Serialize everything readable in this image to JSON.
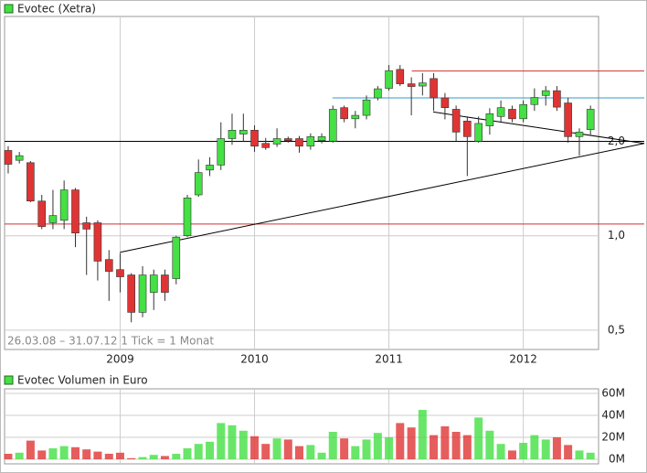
{
  "chart_data": [
    {
      "type": "candlestick",
      "title": "Evotec (Xetra)",
      "caption": "26.03.08 – 31.07.12   1 Tick = 1 Monat",
      "log_scale": true,
      "grid": true,
      "up_color": "#44e044",
      "down_color": "#e03434",
      "x": [
        2008.167,
        2008.25,
        2008.333,
        2008.417,
        2008.5,
        2008.583,
        2008.667,
        2008.75,
        2008.833,
        2008.917,
        2009,
        2009.083,
        2009.167,
        2009.25,
        2009.333,
        2009.417,
        2009.5,
        2009.583,
        2009.667,
        2009.75,
        2009.833,
        2009.917,
        2010,
        2010.083,
        2010.167,
        2010.25,
        2010.333,
        2010.417,
        2010.5,
        2010.583,
        2010.667,
        2010.75,
        2010.833,
        2010.917,
        2011,
        2011.083,
        2011.167,
        2011.25,
        2011.333,
        2011.417,
        2011.5,
        2011.583,
        2011.667,
        2011.75,
        2011.833,
        2011.917,
        2012,
        2012.083,
        2012.167,
        2012.25,
        2012.333,
        2012.417,
        2012.5
      ],
      "open": [
        1.87,
        1.74,
        1.71,
        1.29,
        1.1,
        1.12,
        1.4,
        1.1,
        1.1,
        0.84,
        0.78,
        0.75,
        0.57,
        0.66,
        0.75,
        0.73,
        1.0,
        1.35,
        1.62,
        1.68,
        2.04,
        2.11,
        2.17,
        1.97,
        1.96,
        2.04,
        2.04,
        1.93,
        2.01,
        2.0,
        2.56,
        2.36,
        2.42,
        2.75,
        2.95,
        3.39,
        3.05,
        3.0,
        3.17,
        2.75,
        2.53,
        2.32,
        2.0,
        2.24,
        2.4,
        2.53,
        2.36,
        2.62,
        2.8,
        2.9,
        2.65,
        2.07,
        2.18
      ],
      "high": [
        1.93,
        1.85,
        1.73,
        1.35,
        1.4,
        1.5,
        1.42,
        1.15,
        1.12,
        0.9,
        0.88,
        0.76,
        0.8,
        0.78,
        0.78,
        1.0,
        1.35,
        1.75,
        1.78,
        2.3,
        2.45,
        2.45,
        2.25,
        2.05,
        2.2,
        2.07,
        2.08,
        2.12,
        2.12,
        2.6,
        2.6,
        2.5,
        2.8,
        3.0,
        3.5,
        3.5,
        3.2,
        3.3,
        3.3,
        2.85,
        2.6,
        2.4,
        2.4,
        2.55,
        2.7,
        2.6,
        2.7,
        2.95,
        3.0,
        3.0,
        2.75,
        2.2,
        2.6
      ],
      "low": [
        1.58,
        1.7,
        1.28,
        1.05,
        1.05,
        1.05,
        0.92,
        0.75,
        0.72,
        0.62,
        0.66,
        0.53,
        0.55,
        0.58,
        0.62,
        0.7,
        0.99,
        1.33,
        1.55,
        1.62,
        1.95,
        2.0,
        1.85,
        1.88,
        1.92,
        1.98,
        1.84,
        1.88,
        1.97,
        1.98,
        2.3,
        2.2,
        2.35,
        2.7,
        2.9,
        3.0,
        2.42,
        2.8,
        2.5,
        2.35,
        2.0,
        1.55,
        1.98,
        2.1,
        2.3,
        2.3,
        2.3,
        2.5,
        2.6,
        2.5,
        1.98,
        1.8,
        2.1
      ],
      "close": [
        1.69,
        1.8,
        1.29,
        1.07,
        1.16,
        1.4,
        1.02,
        1.05,
        0.83,
        0.77,
        0.74,
        0.57,
        0.75,
        0.75,
        0.66,
        0.99,
        1.32,
        1.59,
        1.68,
        2.04,
        2.17,
        2.17,
        1.93,
        1.91,
        2.04,
        2.01,
        1.93,
        2.07,
        2.07,
        2.53,
        2.36,
        2.42,
        2.71,
        2.94,
        3.36,
        3.05,
        2.99,
        3.07,
        2.75,
        2.56,
        2.14,
        2.07,
        2.28,
        2.45,
        2.56,
        2.36,
        2.62,
        2.76,
        2.9,
        2.57,
        2.07,
        2.14,
        2.53
      ],
      "xlim": [
        2008.14,
        2012.56
      ],
      "xticks": [
        2009,
        2010,
        2011,
        2012
      ],
      "ylim": [
        0.434,
        5.0
      ],
      "yticks": [
        {
          "value": 0.5,
          "label": "0,5"
        },
        {
          "value": 1,
          "label": "1,0"
        },
        {
          "value": 2,
          "label": "2,0"
        }
      ],
      "hlines": [
        {
          "value": 2.0,
          "color": "#000000",
          "from": 2008.14
        },
        {
          "value": 1.09,
          "color": "#d03030",
          "from": 2008.14
        },
        {
          "value": 3.35,
          "color": "#d03030",
          "from": 2011.17
        },
        {
          "value": 2.75,
          "color": "#3399cc",
          "from": 2010.58
        }
      ],
      "trendlines": [
        {
          "x": [
            2009.0,
            2012.9
          ],
          "y": [
            0.886,
            1.97
          ],
          "color": "#000000"
        },
        {
          "x": [
            2011.33,
            2012.9
          ],
          "y": [
            2.48,
            1.97
          ],
          "color": "#000000"
        }
      ]
    },
    {
      "type": "bar",
      "title": "Evotec Volumen in Euro",
      "x": [
        2008.167,
        2008.25,
        2008.333,
        2008.417,
        2008.5,
        2008.583,
        2008.667,
        2008.75,
        2008.833,
        2008.917,
        2009,
        2009.083,
        2009.167,
        2009.25,
        2009.333,
        2009.417,
        2009.5,
        2009.583,
        2009.667,
        2009.75,
        2009.833,
        2009.917,
        2010,
        2010.083,
        2010.167,
        2010.25,
        2010.333,
        2010.417,
        2010.5,
        2010.583,
        2010.667,
        2010.75,
        2010.833,
        2010.917,
        2011,
        2011.083,
        2011.167,
        2011.25,
        2011.333,
        2011.417,
        2011.5,
        2011.583,
        2011.667,
        2011.75,
        2011.833,
        2011.917,
        2012,
        2012.083,
        2012.167,
        2012.25,
        2012.333,
        2012.417,
        2012.5
      ],
      "values": [
        5000000,
        6000000,
        17000000,
        8000000,
        10000000,
        12000000,
        11000000,
        9000000,
        7000000,
        5000000,
        6000000,
        1000000,
        2000000,
        4000000,
        3000000,
        5000000,
        10000000,
        14000000,
        16000000,
        33000000,
        31000000,
        26000000,
        21000000,
        14000000,
        19000000,
        18000000,
        12000000,
        13000000,
        6000000,
        25000000,
        19000000,
        12000000,
        18000000,
        24000000,
        20000000,
        33000000,
        29000000,
        45000000,
        22000000,
        30000000,
        25000000,
        22000000,
        38000000,
        26000000,
        14000000,
        8000000,
        15000000,
        22000000,
        18000000,
        20000000,
        13000000,
        8000000,
        6000000
      ],
      "xlim": [
        2008.14,
        2012.56
      ],
      "grid": true,
      "ylim": [
        0,
        60000000
      ],
      "yticks": [
        {
          "value": 0,
          "label": "0M"
        },
        {
          "value": 20000000,
          "label": "20M"
        },
        {
          "value": 40000000,
          "label": "40M"
        },
        {
          "value": 60000000,
          "label": "60M"
        }
      ]
    }
  ]
}
